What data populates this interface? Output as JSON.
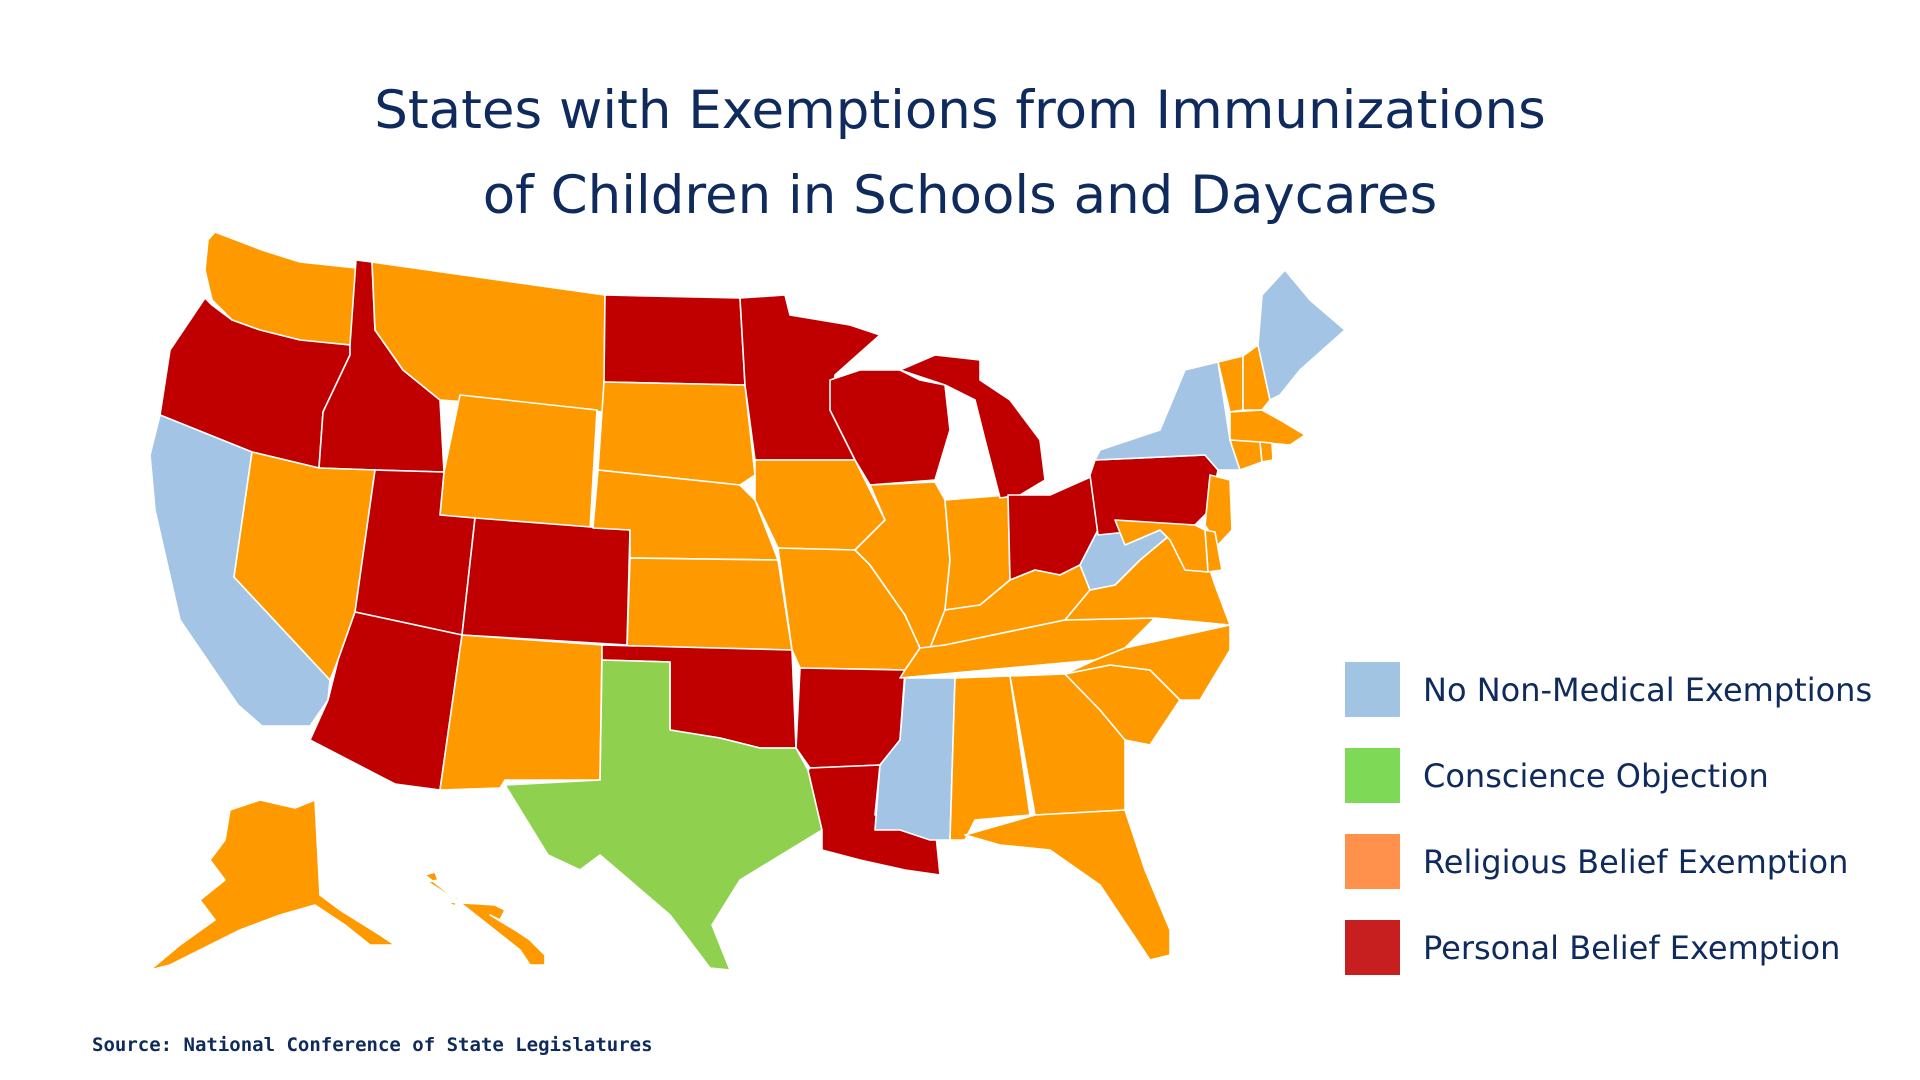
{
  "title": {
    "line1": "States with Exemptions from Immunizations",
    "line2": "of Children in Schools and Daycares"
  },
  "source": "Source: National Conference of State Legislatures",
  "colors": {
    "none": "#a3c4e4",
    "conscience": "#8fd14f",
    "religious": "#ff9900",
    "personal": "#c00000"
  },
  "legend": [
    {
      "label": "No Non-Medical Exemptions",
      "category": "none",
      "color": "#a0c4e2"
    },
    {
      "label": "Conscience Objection",
      "category": "conscience",
      "color": "#7ed957"
    },
    {
      "label": "Religious Belief Exemption",
      "category": "religious",
      "color": "#ff914d"
    },
    {
      "label": "Personal Belief Exemption",
      "category": "personal",
      "color": "#c71f1f"
    }
  ],
  "states": {
    "WA": "religious",
    "OR": "personal",
    "CA": "none",
    "ID": "personal",
    "NV": "religious",
    "UT": "personal",
    "AZ": "personal",
    "MT": "religious",
    "WY": "religious",
    "CO": "personal",
    "NM": "religious",
    "ND": "personal",
    "SD": "religious",
    "NE": "religious",
    "KS": "religious",
    "OK": "personal",
    "TX": "conscience",
    "MN": "personal",
    "IA": "religious",
    "MO": "religious",
    "AR": "personal",
    "LA": "personal",
    "WI": "personal",
    "IL": "religious",
    "MI": "personal",
    "IN": "religious",
    "OH": "personal",
    "KY": "religious",
    "TN": "religious",
    "MS": "none",
    "AL": "religious",
    "GA": "religious",
    "FL": "religious",
    "SC": "religious",
    "NC": "religious",
    "VA": "religious",
    "WV": "none",
    "PA": "personal",
    "NY": "none",
    "ME": "none",
    "VT": "religious",
    "NH": "religious",
    "MA": "religious",
    "RI": "religious",
    "CT": "religious",
    "NJ": "religious",
    "DE": "religious",
    "MD": "religious",
    "AK": "religious",
    "HI": "religious"
  }
}
